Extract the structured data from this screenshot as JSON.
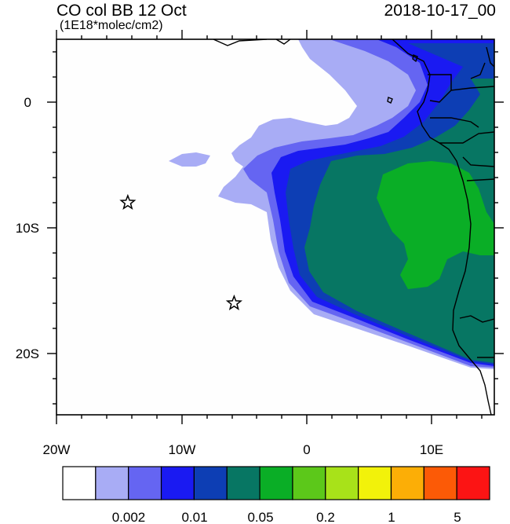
{
  "title": "CO col BB 12 Oct",
  "units": "(1E18*molec/cm2)",
  "valid_time": "2018-10-17_00",
  "lon_ticks": [
    "20W",
    "10W",
    "0",
    "10E"
  ],
  "lat_ticks": [
    "0",
    "10S",
    "20S"
  ],
  "legend": {
    "colors": [
      "#ffffff",
      "#a8acf5",
      "#6565f2",
      "#1a1af2",
      "#0d3eb4",
      "#077663",
      "#0aae26",
      "#5cc81a",
      "#a8e219",
      "#f2f20a",
      "#fcae06",
      "#fc5a06",
      "#fc1414"
    ],
    "labels": [
      "0.002",
      "0.01",
      "0.05",
      "0.2",
      "1",
      "5"
    ]
  },
  "markers": [
    {
      "name": "star",
      "lon": -14.3,
      "lat": -8.0
    },
    {
      "name": "star",
      "lon": -5.8,
      "lat": -16.0
    }
  ]
}
